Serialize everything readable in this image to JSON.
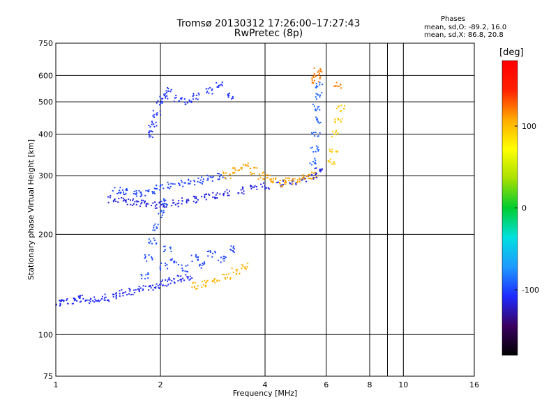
{
  "title_line1": "Tromsø 20130312 17:26:00–17:27:43",
  "title_line2": "RwPretec (8p)",
  "phases": {
    "header": "Phases",
    "line1": "mean, sd,O:  -89.2, 16.0",
    "line2": "mean, sd,X:  86.8, 20.8"
  },
  "colorbar": {
    "unit_label": "[deg]",
    "ticks": [
      "100",
      "0",
      "-100"
    ],
    "tick_values": [
      100,
      0,
      -100
    ],
    "range": [
      -180,
      180
    ],
    "colors": [
      "#000000",
      "#3a0060",
      "#1e2aff",
      "#1e9aff",
      "#00e0e0",
      "#00cc30",
      "#a8e000",
      "#ffff00",
      "#ffaa00",
      "#ff2000",
      "#ff0000"
    ]
  },
  "chart_data": {
    "type": "scatter",
    "title": "Tromsø 20130312 17:26:00–17:27:43 RwPretec (8p)",
    "xlabel": "Frequency [MHz]",
    "ylabel": "Stationary phase Virtual Height [km]",
    "xscale": "log2",
    "yscale": "log",
    "xlim": [
      1,
      16
    ],
    "ylim": [
      75,
      750
    ],
    "xticks": [
      1,
      2,
      4,
      6,
      8,
      9,
      10,
      16
    ],
    "xtick_labels": [
      "1",
      "2",
      "4",
      "6",
      "8",
      "",
      "10",
      "16"
    ],
    "yticks": [
      75,
      100,
      200,
      300,
      400,
      500,
      600,
      750
    ],
    "ytick_labels": [
      "75",
      "100",
      "200",
      "300",
      "400",
      "500",
      "600",
      "750"
    ],
    "grid": true,
    "color_dimension": "phase [deg]",
    "series": [
      {
        "phase_deg": -110,
        "x": [
          1.02,
          1.06,
          1.12,
          1.18,
          1.25,
          1.32,
          1.4,
          1.48,
          1.56,
          1.66,
          1.76,
          1.86,
          1.96,
          2.06,
          2.16,
          2.28,
          2.4
        ],
        "y": [
          125,
          126,
          126,
          128,
          127,
          128,
          129,
          131,
          133,
          135,
          137,
          139,
          141,
          143,
          145,
          147,
          149
        ]
      },
      {
        "phase_deg": -115,
        "x": [
          1.45,
          1.55,
          1.65,
          1.75,
          1.85,
          1.95,
          2.05,
          2.2,
          2.35,
          2.5,
          2.7,
          2.9,
          3.1,
          3.4,
          3.7,
          4.0,
          4.4,
          4.8,
          5.2,
          5.5,
          5.7
        ],
        "y": [
          255,
          252,
          250,
          248,
          246,
          245,
          246,
          248,
          251,
          254,
          258,
          262,
          266,
          271,
          276,
          280,
          284,
          288,
          293,
          300,
          310
        ]
      },
      {
        "phase_deg": -100,
        "x": [
          1.5,
          1.6,
          1.7,
          1.8,
          1.9,
          2.0,
          2.15,
          2.3,
          2.45,
          2.6,
          2.8,
          3.0
        ],
        "y": [
          270,
          268,
          266,
          265,
          270,
          275,
          280,
          284,
          286,
          290,
          295,
          298
        ]
      },
      {
        "phase_deg": -105,
        "x": [
          1.85,
          1.9,
          1.95,
          2.0,
          2.05,
          2.1,
          2.25,
          2.4,
          2.55,
          2.75,
          2.95,
          3.15
        ],
        "y": [
          400,
          430,
          460,
          500,
          520,
          540,
          510,
          500,
          520,
          540,
          560,
          520
        ]
      },
      {
        "phase_deg": -95,
        "x": [
          1.8,
          1.85,
          1.9,
          1.95,
          2.0,
          2.05,
          2.1
        ],
        "y": [
          150,
          170,
          190,
          210,
          230,
          250,
          180
        ]
      },
      {
        "phase_deg": -100,
        "x": [
          2.05,
          2.2,
          2.35,
          2.5,
          2.65,
          2.8,
          3.0,
          3.2
        ],
        "y": [
          160,
          165,
          158,
          170,
          162,
          175,
          168,
          180
        ]
      },
      {
        "phase_deg": -90,
        "x": [
          5.5,
          5.55,
          5.6,
          5.62,
          5.65,
          5.67,
          5.7
        ],
        "y": [
          330,
          360,
          400,
          440,
          480,
          520,
          560
        ]
      },
      {
        "phase_deg": 110,
        "x": [
          3.1,
          3.3,
          3.5,
          3.7,
          3.9,
          4.1,
          4.3,
          4.5,
          4.7,
          4.9,
          5.2,
          5.5
        ],
        "y": [
          300,
          310,
          320,
          310,
          300,
          295,
          290,
          285,
          288,
          292,
          296,
          300
        ]
      },
      {
        "phase_deg": 105,
        "x": [
          2.5,
          2.7,
          2.9,
          3.1,
          3.3,
          3.5
        ],
        "y": [
          140,
          142,
          145,
          150,
          155,
          160
        ]
      },
      {
        "phase_deg": 95,
        "x": [
          6.2,
          6.3,
          6.4,
          6.5,
          6.6
        ],
        "y": [
          330,
          360,
          400,
          440,
          480
        ]
      },
      {
        "phase_deg": 120,
        "x": [
          5.6,
          5.65,
          5.7,
          6.5
        ],
        "y": [
          580,
          600,
          620,
          560
        ]
      }
    ]
  }
}
